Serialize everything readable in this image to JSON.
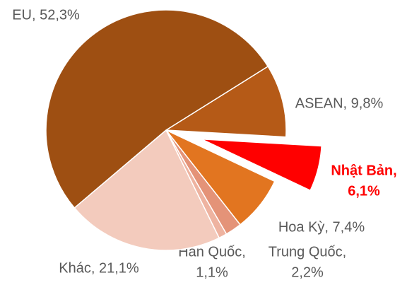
{
  "chart_data": {
    "type": "pie",
    "values": [
      9.8,
      6.1,
      7.4,
      2.2,
      1.1,
      21.1,
      52.3
    ],
    "value_labels": [
      [
        "ASEAN, 9,8%"
      ],
      [
        "Nhật Bản,",
        "6,1%"
      ],
      [
        "Hoa Kỳ, 7,4%"
      ],
      [
        "Trung Quốc,",
        "2,2%"
      ],
      [
        "Hàn Quốc,",
        "1,1%"
      ],
      [
        "Khác, 21,1%"
      ],
      [
        "EU, 52,3%"
      ]
    ],
    "colors": [
      "#b55a17",
      "#ff0000",
      "#e27520",
      "#e49378",
      "#eeb3a0",
      "#f3cbbd",
      "#9e4f12"
    ],
    "explode": [
      false,
      true,
      false,
      false,
      false,
      false,
      false
    ]
  }
}
